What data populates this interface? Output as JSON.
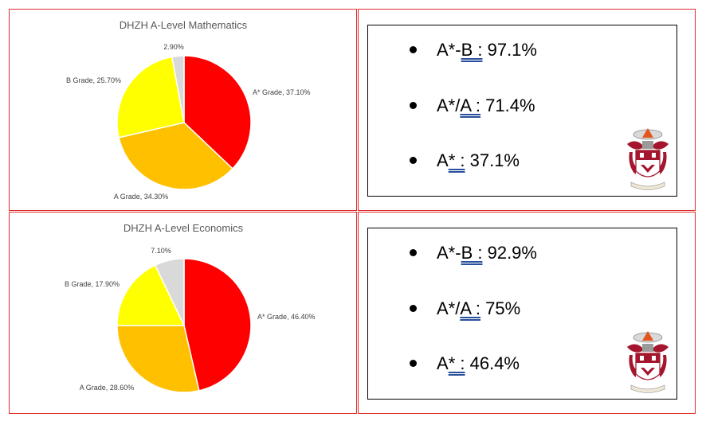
{
  "panels": {
    "mathematics": {
      "stats": [
        {
          "grade_prefix": "A*-",
          "grade_underlined": "B :",
          "value": "97.1%"
        },
        {
          "grade_prefix": "A*/",
          "grade_underlined": "A :",
          "value": "71.4%"
        },
        {
          "grade_prefix": "A",
          "grade_underlined": "* :",
          "value": "37.1%"
        }
      ]
    },
    "economics": {
      "stats": [
        {
          "grade_prefix": "A*-",
          "grade_underlined": "B :",
          "value": "92.9%"
        },
        {
          "grade_prefix": "A*/",
          "grade_underlined": "A :",
          "value": "75%"
        },
        {
          "grade_prefix": "A",
          "grade_underlined": "* :",
          "value": "46.4%"
        }
      ]
    }
  },
  "chart_data": [
    {
      "type": "pie",
      "title": "DHZH A-Level Mathematics",
      "slices": [
        {
          "label": "A* Grade, 37.10%",
          "value": 37.1,
          "color": "#ff0000"
        },
        {
          "label": "A Grade, 34.30%",
          "value": 34.3,
          "color": "#ffc000"
        },
        {
          "label": "B Grade, 25.70%",
          "value": 25.7,
          "color": "#ffff00"
        },
        {
          "label": "2.90%",
          "value": 2.9,
          "color": "#d9d9d9"
        }
      ]
    },
    {
      "type": "pie",
      "title": "DHZH A-Level Economics",
      "slices": [
        {
          "label": "A* Grade, 46.40%",
          "value": 46.4,
          "color": "#ff0000"
        },
        {
          "label": "A Grade, 28.60%",
          "value": 28.6,
          "color": "#ffc000"
        },
        {
          "label": "B Grade, 17.90%",
          "value": 17.9,
          "color": "#ffff00"
        },
        {
          "label": "7.10%",
          "value": 7.1,
          "color": "#d9d9d9"
        }
      ]
    }
  ],
  "crest": {
    "colors": {
      "crimson": "#a3162e",
      "gold": "#d99a2b",
      "grey": "#9a9a9a",
      "flame": "#e2551d"
    },
    "icon": "school-crest-icon"
  }
}
